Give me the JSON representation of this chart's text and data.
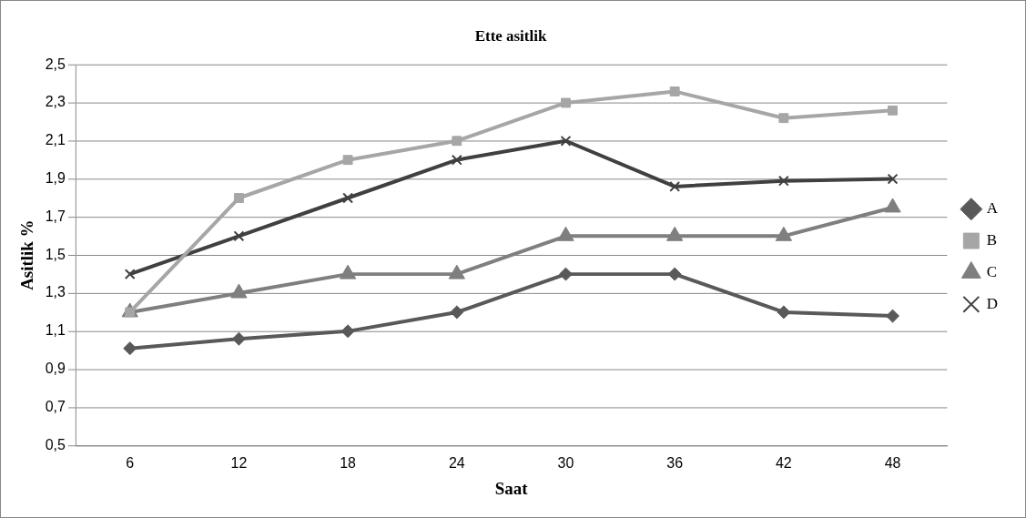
{
  "chart_data": {
    "type": "line",
    "title": "Ette asitlik",
    "xlabel": "Saat",
    "ylabel": "Asitlik %",
    "categories": [
      "6",
      "12",
      "18",
      "24",
      "30",
      "36",
      "42",
      "48"
    ],
    "series": [
      {
        "name": "A",
        "color": "#595959",
        "marker": "diamond",
        "values": [
          1.01,
          1.06,
          1.1,
          1.2,
          1.4,
          1.4,
          1.2,
          1.18
        ]
      },
      {
        "name": "B",
        "color": "#a6a6a6",
        "marker": "square",
        "values": [
          1.2,
          1.8,
          2.0,
          2.1,
          2.3,
          2.36,
          2.22,
          2.26
        ]
      },
      {
        "name": "C",
        "color": "#7f7f7f",
        "marker": "triangle",
        "values": [
          1.2,
          1.3,
          1.4,
          1.4,
          1.6,
          1.6,
          1.6,
          1.75
        ]
      },
      {
        "name": "D",
        "color": "#404040",
        "marker": "cross",
        "values": [
          1.4,
          1.6,
          1.8,
          2.0,
          2.1,
          1.86,
          1.89,
          1.9
        ]
      }
    ],
    "ylim": [
      0.5,
      2.5
    ],
    "yticks": [
      {
        "value": 0.5,
        "label": "0,5"
      },
      {
        "value": 0.7,
        "label": "0,7"
      },
      {
        "value": 0.9,
        "label": "0,9"
      },
      {
        "value": 1.1,
        "label": "1,1"
      },
      {
        "value": 1.3,
        "label": "1,3"
      },
      {
        "value": 1.5,
        "label": "1,5"
      },
      {
        "value": 1.7,
        "label": "1,7"
      },
      {
        "value": 1.9,
        "label": "1,9"
      },
      {
        "value": 2.1,
        "label": "2,1"
      },
      {
        "value": 2.3,
        "label": "2,3"
      },
      {
        "value": 2.5,
        "label": "2,5"
      }
    ],
    "grid": "y",
    "legend": "right",
    "line_style": "solid"
  }
}
